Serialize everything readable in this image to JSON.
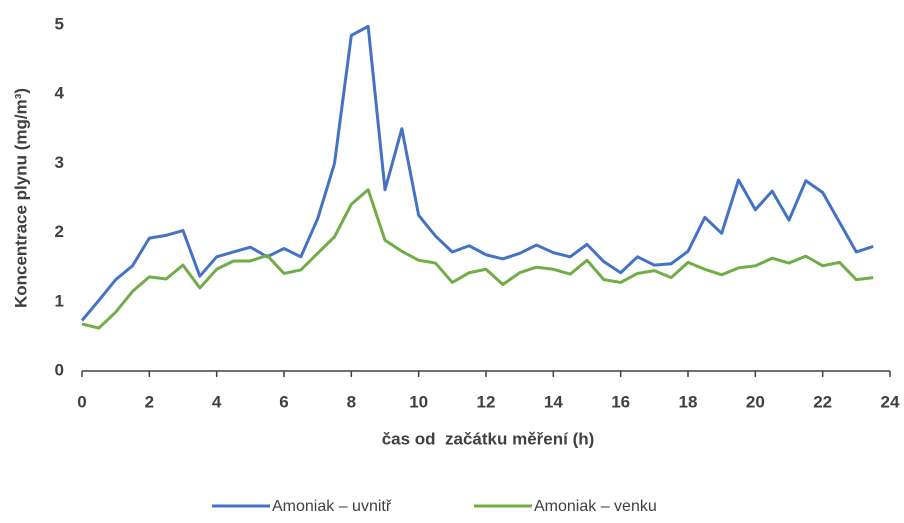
{
  "chart_data": {
    "type": "line",
    "x_label": "čas od  začátku měření (h)",
    "y_label": "Koncentrace plynu (mg/m³)",
    "x": [
      0,
      0.5,
      1,
      1.5,
      2,
      2.5,
      3,
      3.5,
      4,
      4.5,
      5,
      5.5,
      6,
      6.5,
      7,
      7.5,
      8,
      8.5,
      9,
      9.5,
      10,
      10.5,
      11,
      11.5,
      12,
      12.5,
      13,
      13.5,
      14,
      14.5,
      15,
      15.5,
      16,
      16.5,
      17,
      17.5,
      18,
      18.5,
      19,
      19.5,
      20,
      20.5,
      21,
      21.5,
      22,
      22.5,
      23,
      23.5
    ],
    "series": [
      {
        "name": "Amoniak – uvnitř",
        "color": "#4472c4",
        "values": [
          0.73,
          1.02,
          1.32,
          1.52,
          1.92,
          1.96,
          2.03,
          1.37,
          1.65,
          1.72,
          1.79,
          1.65,
          1.77,
          1.65,
          2.2,
          3.0,
          4.85,
          4.98,
          2.62,
          3.5,
          2.25,
          1.95,
          1.72,
          1.81,
          1.68,
          1.62,
          1.7,
          1.82,
          1.71,
          1.65,
          1.83,
          1.58,
          1.42,
          1.65,
          1.53,
          1.55,
          1.73,
          2.22,
          1.99,
          2.76,
          2.33,
          2.6,
          2.18,
          2.75,
          2.58,
          2.15,
          1.72,
          1.8
        ]
      },
      {
        "name": "Amoniak – venku",
        "color": "#70ad47",
        "values": [
          0.68,
          0.62,
          0.85,
          1.15,
          1.36,
          1.33,
          1.53,
          1.2,
          1.47,
          1.59,
          1.59,
          1.67,
          1.41,
          1.46,
          1.7,
          1.94,
          2.41,
          2.62,
          1.89,
          1.73,
          1.6,
          1.56,
          1.28,
          1.42,
          1.47,
          1.25,
          1.42,
          1.5,
          1.47,
          1.4,
          1.6,
          1.32,
          1.28,
          1.41,
          1.45,
          1.35,
          1.57,
          1.47,
          1.39,
          1.49,
          1.52,
          1.63,
          1.56,
          1.66,
          1.52,
          1.57,
          1.32,
          1.35
        ]
      }
    ],
    "xlim": [
      0,
      24
    ],
    "xticks": [
      0,
      2,
      4,
      6,
      8,
      10,
      12,
      14,
      16,
      18,
      20,
      22,
      24
    ],
    "ylim": [
      0,
      5
    ],
    "yticks": [
      0,
      1,
      2,
      3,
      4,
      5
    ],
    "grid": false,
    "legend": "bottom"
  }
}
